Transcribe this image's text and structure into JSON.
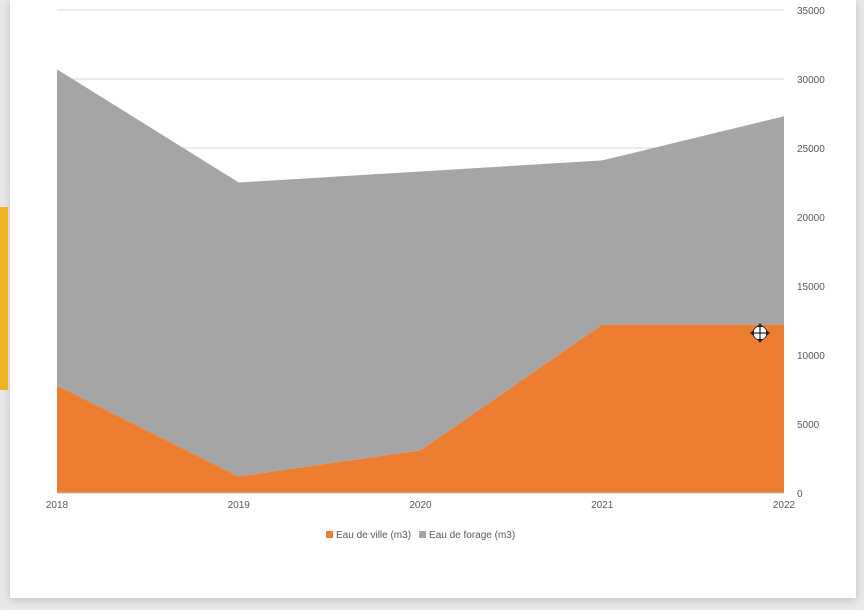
{
  "chart_data": {
    "type": "area",
    "stacked": true,
    "categories": [
      "2018",
      "2019",
      "2020",
      "2021",
      "2022"
    ],
    "series": [
      {
        "name": "Eau de ville (m3)",
        "values": [
          7800,
          1200,
          3100,
          12200,
          12200
        ],
        "color": "#ed7d31"
      },
      {
        "name": "Eau de forage (m3)",
        "values": [
          22900,
          21300,
          20200,
          11900,
          15100
        ],
        "color": "#a5a5a5"
      }
    ],
    "ylim": [
      0,
      35000
    ],
    "yticks": [
      "0",
      "5000",
      "10000",
      "15000",
      "20000",
      "25000",
      "30000",
      "35000"
    ],
    "y_axis_side": "right",
    "grid": true,
    "legend": "bottom",
    "title": "",
    "xlabel": "",
    "ylabel": ""
  },
  "colors": {
    "accent_marker": "#f0b323",
    "gridline": "#d9d9d9",
    "text": "#595959"
  },
  "icons": {
    "cursor": "move-cursor-icon"
  }
}
